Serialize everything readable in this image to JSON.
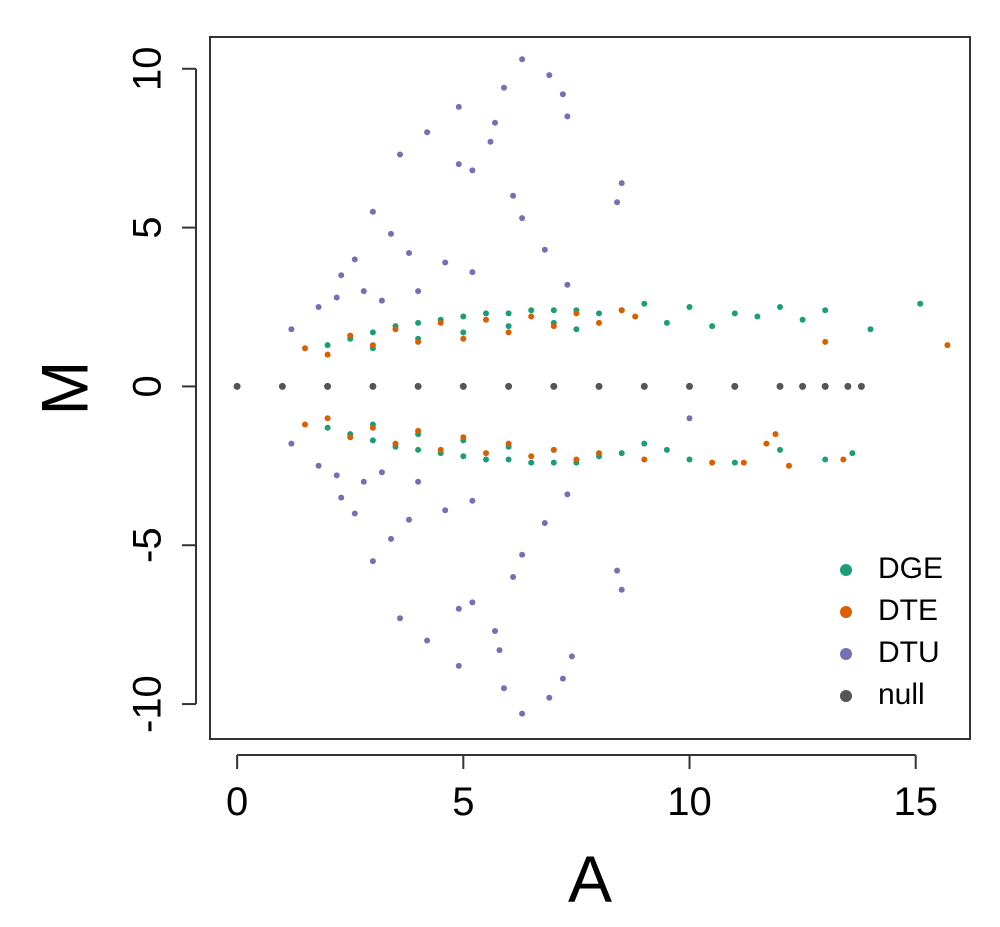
{
  "chart_data": {
    "type": "scatter",
    "title": "",
    "xlabel": "A",
    "ylabel": "M",
    "xlim": [
      -0.6,
      16.2
    ],
    "ylim": [
      -11.1,
      11.0
    ],
    "xticks": [
      0,
      5,
      10,
      15
    ],
    "yticks": [
      -10,
      -5,
      0,
      5,
      10
    ],
    "xtick_labels": [
      "0",
      "5",
      "10",
      "15"
    ],
    "ytick_labels": [
      "-10",
      "-5",
      "0",
      "5",
      "10"
    ],
    "grid": false,
    "legend_position": "bottom-right",
    "series": [
      {
        "name": "DGE",
        "color": "#1b9e77",
        "points": [
          [
            2.0,
            1.3
          ],
          [
            2.5,
            1.5
          ],
          [
            3.0,
            1.7
          ],
          [
            3.5,
            1.9
          ],
          [
            4.0,
            2.0
          ],
          [
            4.5,
            2.1
          ],
          [
            5.0,
            2.2
          ],
          [
            5.5,
            2.3
          ],
          [
            6.0,
            2.3
          ],
          [
            6.5,
            2.4
          ],
          [
            7.0,
            2.4
          ],
          [
            7.5,
            2.4
          ],
          [
            3.0,
            1.2
          ],
          [
            4.0,
            1.5
          ],
          [
            5.0,
            1.7
          ],
          [
            6.0,
            1.9
          ],
          [
            7.0,
            2.0
          ],
          [
            7.5,
            1.8
          ],
          [
            8.0,
            2.3
          ],
          [
            8.5,
            2.4
          ],
          [
            9.0,
            2.6
          ],
          [
            9.5,
            2.0
          ],
          [
            10.0,
            2.5
          ],
          [
            10.5,
            1.9
          ],
          [
            11.0,
            2.3
          ],
          [
            11.5,
            2.2
          ],
          [
            12.0,
            2.5
          ],
          [
            12.5,
            2.1
          ],
          [
            13.0,
            2.4
          ],
          [
            14.0,
            1.8
          ],
          [
            15.1,
            2.6
          ],
          [
            2.0,
            -1.3
          ],
          [
            2.5,
            -1.5
          ],
          [
            3.0,
            -1.7
          ],
          [
            3.5,
            -1.9
          ],
          [
            4.0,
            -2.0
          ],
          [
            4.5,
            -2.1
          ],
          [
            5.0,
            -2.2
          ],
          [
            5.5,
            -2.3
          ],
          [
            6.0,
            -2.3
          ],
          [
            6.5,
            -2.4
          ],
          [
            7.0,
            -2.4
          ],
          [
            7.5,
            -2.4
          ],
          [
            3.0,
            -1.2
          ],
          [
            4.0,
            -1.5
          ],
          [
            5.0,
            -1.7
          ],
          [
            6.0,
            -1.9
          ],
          [
            7.0,
            -2.0
          ],
          [
            8.0,
            -2.2
          ],
          [
            8.5,
            -2.1
          ],
          [
            9.0,
            -1.8
          ],
          [
            9.5,
            -2.0
          ],
          [
            10.0,
            -2.3
          ],
          [
            11.0,
            -2.4
          ],
          [
            12.0,
            -2.0
          ],
          [
            13.0,
            -2.3
          ],
          [
            13.6,
            -2.1
          ]
        ]
      },
      {
        "name": "DTE",
        "color": "#d95f02",
        "points": [
          [
            1.5,
            1.2
          ],
          [
            2.0,
            1.0
          ],
          [
            2.5,
            1.6
          ],
          [
            3.0,
            1.3
          ],
          [
            3.5,
            1.8
          ],
          [
            4.0,
            1.4
          ],
          [
            4.5,
            2.0
          ],
          [
            5.0,
            1.5
          ],
          [
            5.5,
            2.1
          ],
          [
            6.0,
            1.7
          ],
          [
            6.5,
            2.2
          ],
          [
            7.0,
            1.9
          ],
          [
            7.5,
            2.3
          ],
          [
            8.0,
            2.0
          ],
          [
            8.5,
            2.4
          ],
          [
            8.8,
            2.2
          ],
          [
            13.0,
            1.4
          ],
          [
            15.7,
            1.3
          ],
          [
            1.5,
            -1.2
          ],
          [
            2.0,
            -1.0
          ],
          [
            2.5,
            -1.6
          ],
          [
            3.0,
            -1.3
          ],
          [
            3.5,
            -1.8
          ],
          [
            4.0,
            -1.4
          ],
          [
            4.5,
            -2.0
          ],
          [
            5.0,
            -1.6
          ],
          [
            5.5,
            -2.1
          ],
          [
            6.0,
            -1.8
          ],
          [
            6.5,
            -2.2
          ],
          [
            7.0,
            -2.0
          ],
          [
            7.5,
            -2.3
          ],
          [
            8.0,
            -2.1
          ],
          [
            9.0,
            -2.3
          ],
          [
            10.5,
            -2.4
          ],
          [
            11.2,
            -2.4
          ],
          [
            11.7,
            -1.8
          ],
          [
            11.9,
            -1.5
          ],
          [
            12.2,
            -2.5
          ],
          [
            13.4,
            -2.3
          ]
        ]
      },
      {
        "name": "DTU",
        "color": "#7570b3",
        "points": [
          [
            6.3,
            10.3
          ],
          [
            6.9,
            9.8
          ],
          [
            5.9,
            9.4
          ],
          [
            7.2,
            9.2
          ],
          [
            4.9,
            8.8
          ],
          [
            7.3,
            8.5
          ],
          [
            5.7,
            8.3
          ],
          [
            4.2,
            8.0
          ],
          [
            5.6,
            7.7
          ],
          [
            3.6,
            7.3
          ],
          [
            4.9,
            7.0
          ],
          [
            5.2,
            6.8
          ],
          [
            8.5,
            6.4
          ],
          [
            6.1,
            6.0
          ],
          [
            8.4,
            5.8
          ],
          [
            3.0,
            5.5
          ],
          [
            6.3,
            5.3
          ],
          [
            3.4,
            4.8
          ],
          [
            6.8,
            4.3
          ],
          [
            2.6,
            4.0
          ],
          [
            3.8,
            4.2
          ],
          [
            4.6,
            3.9
          ],
          [
            5.2,
            3.6
          ],
          [
            7.3,
            3.2
          ],
          [
            2.3,
            3.5
          ],
          [
            2.8,
            3.0
          ],
          [
            3.2,
            2.7
          ],
          [
            4.0,
            3.0
          ],
          [
            1.8,
            2.5
          ],
          [
            2.2,
            2.8
          ],
          [
            1.2,
            1.8
          ],
          [
            6.3,
            -10.3
          ],
          [
            6.9,
            -9.8
          ],
          [
            5.9,
            -9.5
          ],
          [
            7.2,
            -9.2
          ],
          [
            4.9,
            -8.8
          ],
          [
            7.4,
            -8.5
          ],
          [
            5.8,
            -8.3
          ],
          [
            4.2,
            -8.0
          ],
          [
            5.7,
            -7.7
          ],
          [
            3.6,
            -7.3
          ],
          [
            4.9,
            -7.0
          ],
          [
            5.2,
            -6.8
          ],
          [
            8.5,
            -6.4
          ],
          [
            6.1,
            -6.0
          ],
          [
            8.4,
            -5.8
          ],
          [
            3.0,
            -5.5
          ],
          [
            6.3,
            -5.3
          ],
          [
            3.4,
            -4.8
          ],
          [
            6.8,
            -4.3
          ],
          [
            2.6,
            -4.0
          ],
          [
            3.8,
            -4.2
          ],
          [
            4.6,
            -3.9
          ],
          [
            5.2,
            -3.6
          ],
          [
            7.3,
            -3.4
          ],
          [
            2.3,
            -3.5
          ],
          [
            2.8,
            -3.0
          ],
          [
            3.2,
            -2.7
          ],
          [
            4.0,
            -3.0
          ],
          [
            1.8,
            -2.5
          ],
          [
            2.2,
            -2.8
          ],
          [
            1.2,
            -1.8
          ],
          [
            10.0,
            -1.0
          ]
        ]
      },
      {
        "name": "null",
        "color": "#555555",
        "points": [
          [
            0.0,
            0.0
          ],
          [
            1.0,
            0.0
          ],
          [
            2.0,
            0.0
          ],
          [
            3.0,
            0.0
          ],
          [
            4.0,
            0.0
          ],
          [
            5.0,
            0.0
          ],
          [
            6.0,
            0.0
          ],
          [
            7.0,
            0.0
          ],
          [
            8.0,
            0.0
          ],
          [
            9.0,
            0.0
          ],
          [
            10.0,
            0.0
          ],
          [
            11.0,
            0.0
          ],
          [
            12.0,
            0.0
          ],
          [
            12.5,
            0.0
          ],
          [
            13.0,
            0.0
          ],
          [
            13.5,
            0.0
          ],
          [
            13.8,
            0.0
          ]
        ]
      }
    ]
  }
}
